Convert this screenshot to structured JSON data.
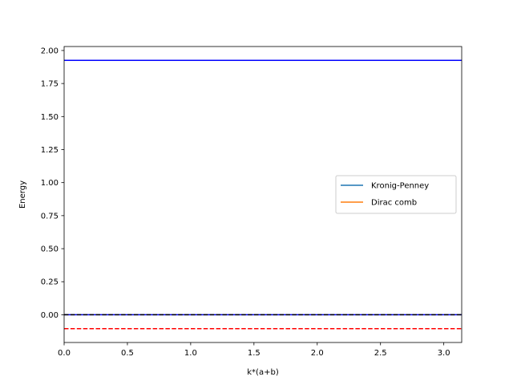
{
  "chart_data": {
    "type": "line",
    "title": "",
    "xlabel": "k*(a+b)",
    "ylabel": "Energy",
    "xlim": [
      0,
      3.14159
    ],
    "ylim": [
      -0.21,
      2.03
    ],
    "x_ticks": [
      0.0,
      0.5,
      1.0,
      1.5,
      2.0,
      2.5,
      3.0
    ],
    "x_tick_labels": [
      "0.0",
      "0.5",
      "1.0",
      "1.5",
      "2.0",
      "2.5",
      "3.0"
    ],
    "y_ticks": [
      0.0,
      0.25,
      0.5,
      0.75,
      1.0,
      1.25,
      1.5,
      1.75,
      2.0
    ],
    "y_tick_labels": [
      "0.00",
      "0.25",
      "0.50",
      "0.75",
      "1.00",
      "1.25",
      "1.50",
      "1.75",
      "2.00"
    ],
    "grid": false,
    "legend_position": "center-right",
    "series": [
      {
        "name": "Kronig-Penney",
        "color": "#1f77b4",
        "style": "solid",
        "x": [],
        "y": []
      },
      {
        "name": "Dirac comb",
        "color": "#ff7f0e",
        "style": "solid",
        "x": [],
        "y": []
      },
      {
        "color": "#0000ff",
        "style": "solid",
        "x": [
          0,
          3.14159
        ],
        "y": [
          1.925,
          1.925
        ]
      },
      {
        "color": "#0000ff",
        "style": "solid",
        "x": [
          0,
          3.14159
        ],
        "y": [
          0.0,
          0.0
        ]
      },
      {
        "color": "#000000",
        "style": "dashed",
        "x": [
          0,
          3.14159
        ],
        "y": [
          0.0,
          0.0
        ]
      },
      {
        "color": "#ff0000",
        "style": "dashed",
        "x": [
          0,
          3.14159
        ],
        "y": [
          -0.105,
          -0.105
        ]
      }
    ]
  }
}
